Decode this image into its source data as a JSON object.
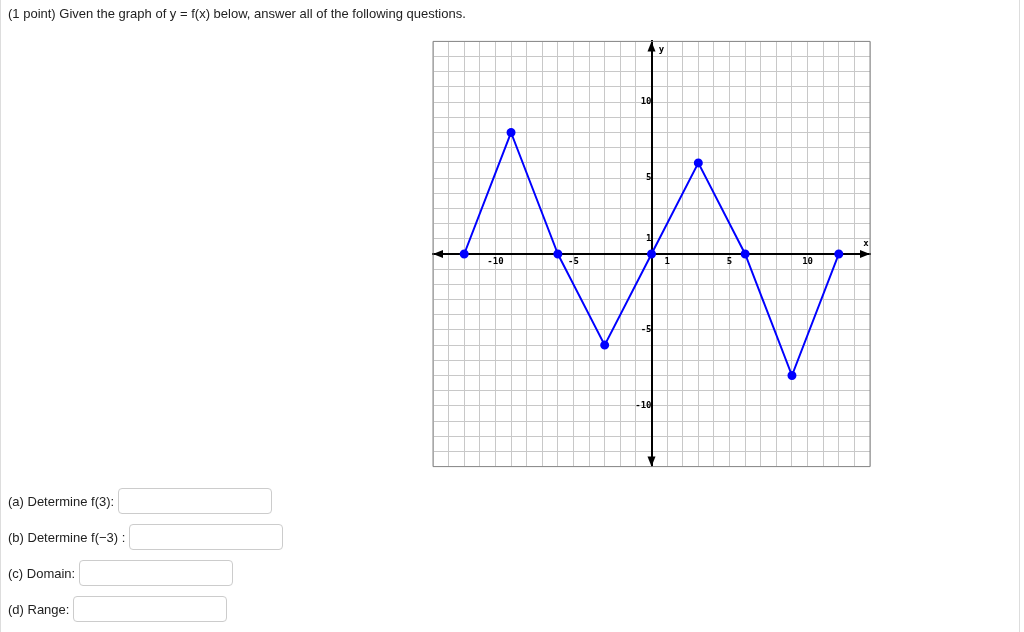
{
  "chart_data": {
    "type": "line",
    "title": "(1 point) Given the graph of y = f(x) below, answer all of the following questions.",
    "xlabel": "x",
    "ylabel": "y",
    "x": [
      -12,
      -9,
      -6,
      -3,
      0,
      3,
      6,
      9,
      12
    ],
    "series": [
      {
        "color": "#0000ff",
        "values": [
          0,
          8,
          0,
          -6,
          0,
          6,
          0,
          -8,
          0
        ]
      }
    ],
    "xlim": [
      -14,
      14
    ],
    "ylim": [
      -14,
      14
    ],
    "xticks": [
      {
        "value": -14,
        "label": null
      },
      {
        "value": -13,
        "label": null
      },
      {
        "value": -12,
        "label": null
      },
      {
        "value": -11,
        "label": null
      },
      -10,
      {
        "value": -9,
        "label": null
      },
      {
        "value": -8,
        "label": null
      },
      {
        "value": -7,
        "label": null
      },
      {
        "value": -6,
        "label": null
      },
      -5,
      {
        "value": -4,
        "label": null
      },
      {
        "value": -3,
        "label": null
      },
      {
        "value": -2,
        "label": null
      },
      {
        "value": -1,
        "label": null
      },
      {
        "value": 0,
        "label": null
      },
      1,
      {
        "value": 2,
        "label": null
      },
      {
        "value": 3,
        "label": null
      },
      {
        "value": 4,
        "label": null
      },
      5,
      {
        "value": 6,
        "label": null
      },
      {
        "value": 7,
        "label": null
      },
      {
        "value": 8,
        "label": null
      },
      {
        "value": 9,
        "label": null
      },
      10,
      {
        "value": 11,
        "label": null
      },
      {
        "value": 12,
        "label": null
      },
      {
        "value": 13,
        "label": null
      },
      {
        "value": 14,
        "label": null
      }
    ],
    "yticks": [
      {
        "value": -14,
        "label": null
      },
      {
        "value": -13,
        "label": null
      },
      {
        "value": -12,
        "label": null
      },
      {
        "value": -11,
        "label": null
      },
      -10,
      {
        "value": -9,
        "label": null
      },
      {
        "value": -8,
        "label": null
      },
      {
        "value": -7,
        "label": null
      },
      {
        "value": -6,
        "label": null
      },
      -5,
      {
        "value": -4,
        "label": null
      },
      {
        "value": -3,
        "label": null
      },
      {
        "value": -2,
        "label": null
      },
      {
        "value": -1,
        "label": null
      },
      {
        "value": 0,
        "label": null
      },
      1,
      {
        "value": 2,
        "label": null
      },
      {
        "value": 3,
        "label": null
      },
      {
        "value": 4,
        "label": null
      },
      5,
      {
        "value": 6,
        "label": null
      },
      {
        "value": 7,
        "label": null
      },
      {
        "value": 8,
        "label": null
      },
      {
        "value": 9,
        "label": null
      },
      10,
      {
        "value": 11,
        "label": null
      },
      {
        "value": 12,
        "label": null
      },
      {
        "value": 13,
        "label": null
      },
      {
        "value": 14,
        "label": null
      }
    ],
    "grid": true,
    "legend": false,
    "marker": "circle",
    "line_style": "solid",
    "annotations": [
      "(a) Determine f(3):",
      "(b) Determine f(−3) :",
      "(c) Domain:",
      "(d) Range:"
    ]
  }
}
